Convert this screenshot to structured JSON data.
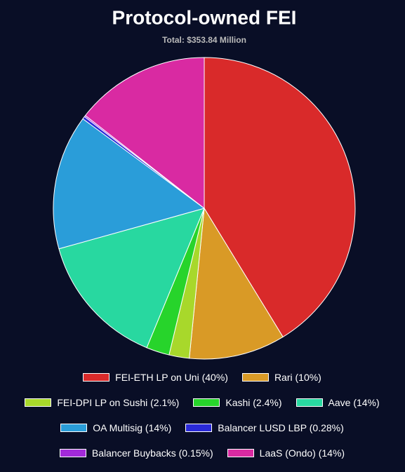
{
  "chart_data": {
    "type": "pie",
    "title": "Protocol-owned FEI",
    "subtitle": "Total: $353.84 Million",
    "categories": [
      "FEI-ETH LP on Uni (40%)",
      "Rari (10%)",
      "FEI-DPI LP on Sushi (2.1%)",
      "Kashi (2.4%)",
      "Aave (14%)",
      "OA Multisig (14%)",
      "Balancer LUSD LBP (0.28%)",
      "Balancer Buybacks (0.15%)",
      "LaaS (Ondo) (14%)"
    ],
    "values": [
      40,
      10,
      2.1,
      2.4,
      14,
      14,
      0.28,
      0.15,
      14
    ],
    "colors": [
      "#d92a2a",
      "#d99a26",
      "#a8d82b",
      "#27d42b",
      "#28d8a0",
      "#2a9dd9",
      "#2a2ad9",
      "#a22ad9",
      "#d92aa2"
    ]
  }
}
